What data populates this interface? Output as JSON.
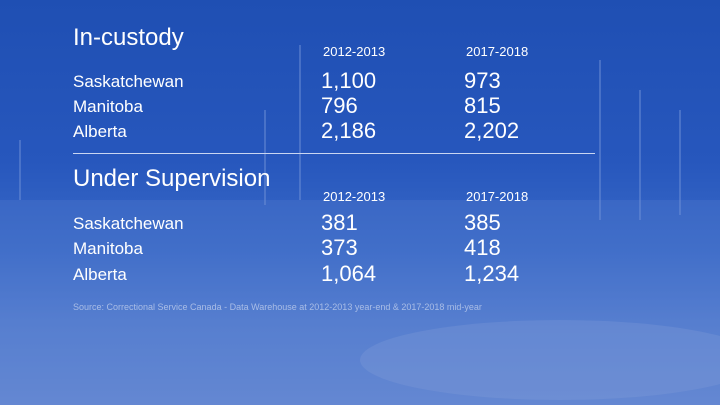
{
  "sections": [
    {
      "title": "In-custody",
      "columns": [
        "2012-2013",
        "2017-2018"
      ],
      "rows": [
        {
          "label": "Saskatchewan",
          "values": [
            "1,100",
            "973"
          ]
        },
        {
          "label": "Manitoba",
          "values": [
            "796",
            "815"
          ]
        },
        {
          "label": "Alberta",
          "values": [
            "2,186",
            "2,202"
          ]
        }
      ]
    },
    {
      "title": "Under Supervision",
      "columns": [
        "2012-2013",
        "2017-2018"
      ],
      "rows": [
        {
          "label": "Saskatchewan",
          "values": [
            "381",
            "385"
          ]
        },
        {
          "label": "Manitoba",
          "values": [
            "373",
            "418"
          ]
        },
        {
          "label": "Alberta",
          "values": [
            "1,064",
            "1,234"
          ]
        }
      ]
    }
  ],
  "source": "Source: Correctional Service Canada - Data Warehouse at 2012-2013 year-end & 2017-2018 mid-year"
}
